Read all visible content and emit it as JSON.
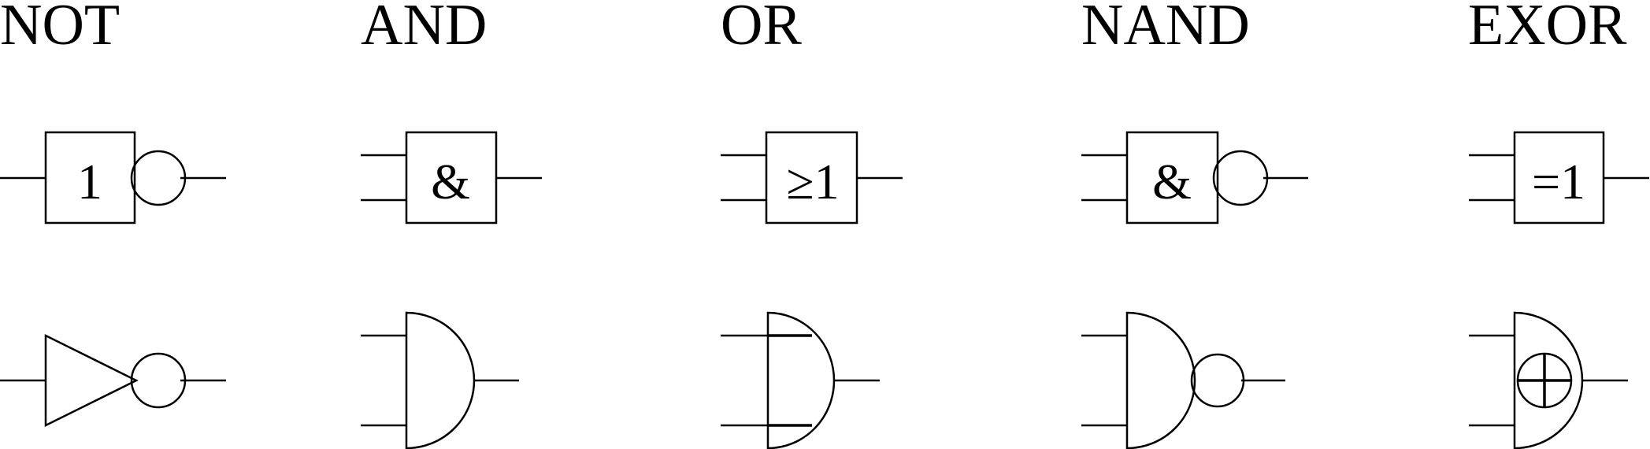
{
  "gates": [
    {
      "title": "NOT",
      "box_symbol": "1",
      "negated": true
    },
    {
      "title": "AND",
      "box_symbol": "&",
      "negated": false
    },
    {
      "title": "OR",
      "box_symbol": "≥1",
      "negated": false
    },
    {
      "title": "NAND",
      "box_symbol": "&",
      "negated": true
    },
    {
      "title": "EXOR",
      "box_symbol": "=1",
      "negated": false
    }
  ]
}
